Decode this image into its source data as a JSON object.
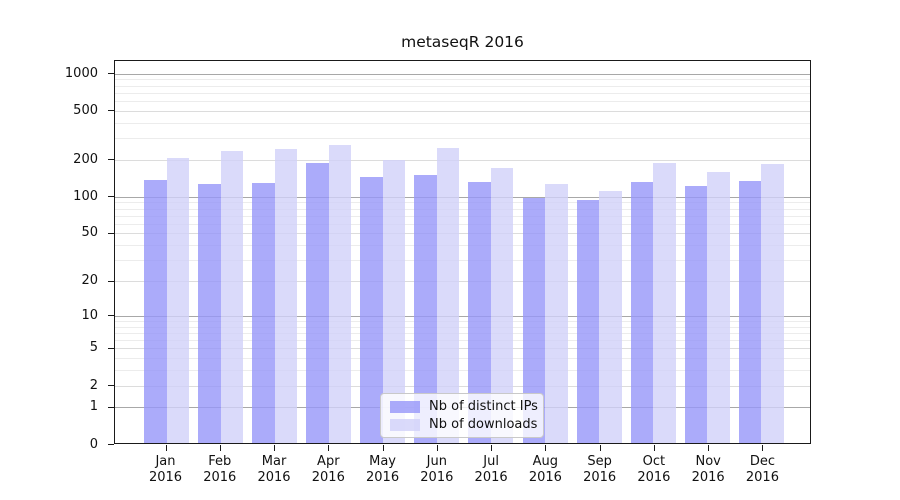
{
  "chart_data": {
    "type": "bar",
    "title": "metaseqR 2016",
    "categories": [
      "Jan",
      "Feb",
      "Mar",
      "Apr",
      "May",
      "Jun",
      "Jul",
      "Aug",
      "Sep",
      "Oct",
      "Nov",
      "Dec"
    ],
    "x_tick_second_line": "2016",
    "series": [
      {
        "name": "Nb of distinct IPs",
        "color": "rgba(150,150,249,0.8)",
        "values": [
          134,
          125,
          127,
          184,
          140,
          147,
          129,
          96,
          92,
          128,
          119,
          132
        ]
      },
      {
        "name": "Nb of downloads",
        "color": "rgba(209,209,249,0.8)",
        "values": [
          200,
          229,
          240,
          258,
          194,
          243,
          166,
          125,
          109,
          183,
          154,
          180
        ]
      }
    ],
    "y_axis": {
      "scale": "log10(value+1)",
      "ticks": [
        0,
        1,
        2,
        5,
        10,
        20,
        50,
        100,
        200,
        500,
        1000
      ],
      "max_value": 1280
    },
    "x_axis": {
      "label": ""
    },
    "legend": {
      "position": "bottom-center"
    },
    "grid": {
      "orientation": "horizontal",
      "major_color": "#a8a8a8",
      "labeled_color": "#dcdcdc",
      "minor_color": "#ececec"
    }
  }
}
